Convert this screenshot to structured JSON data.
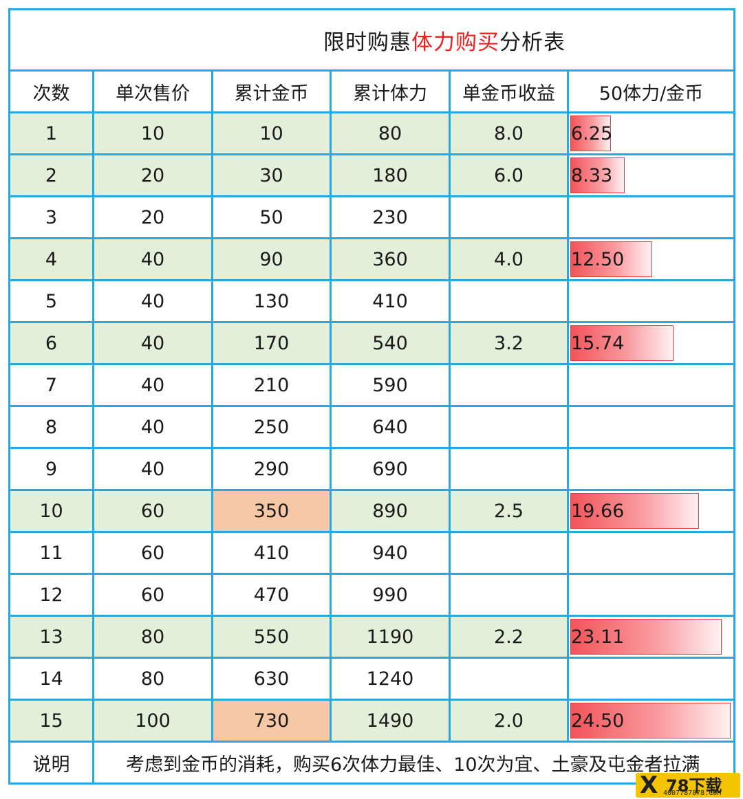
{
  "title": {
    "part1": "限时购惠",
    "part2": "体力购买",
    "part3": "分析表"
  },
  "headers": [
    "次数",
    "单次售价",
    "累计金币",
    "累计体力",
    "单金币收益",
    "50体力/金币"
  ],
  "rows": [
    {
      "n": "1",
      "price": "10",
      "coins": "10",
      "stamina": "80",
      "yield": "8.0",
      "ratio": "6.25",
      "ratio_value": 6.25,
      "hl": true,
      "peach": false
    },
    {
      "n": "2",
      "price": "20",
      "coins": "30",
      "stamina": "180",
      "yield": "6.0",
      "ratio": "8.33",
      "ratio_value": 8.33,
      "hl": true,
      "peach": false
    },
    {
      "n": "3",
      "price": "20",
      "coins": "50",
      "stamina": "230",
      "yield": "",
      "ratio": "",
      "ratio_value": 0,
      "hl": false,
      "peach": false
    },
    {
      "n": "4",
      "price": "40",
      "coins": "90",
      "stamina": "360",
      "yield": "4.0",
      "ratio": "12.50",
      "ratio_value": 12.5,
      "hl": true,
      "peach": false
    },
    {
      "n": "5",
      "price": "40",
      "coins": "130",
      "stamina": "410",
      "yield": "",
      "ratio": "",
      "ratio_value": 0,
      "hl": false,
      "peach": false
    },
    {
      "n": "6",
      "price": "40",
      "coins": "170",
      "stamina": "540",
      "yield": "3.2",
      "ratio": "15.74",
      "ratio_value": 15.74,
      "hl": true,
      "peach": false
    },
    {
      "n": "7",
      "price": "40",
      "coins": "210",
      "stamina": "590",
      "yield": "",
      "ratio": "",
      "ratio_value": 0,
      "hl": false,
      "peach": false
    },
    {
      "n": "8",
      "price": "40",
      "coins": "250",
      "stamina": "640",
      "yield": "",
      "ratio": "",
      "ratio_value": 0,
      "hl": false,
      "peach": false
    },
    {
      "n": "9",
      "price": "40",
      "coins": "290",
      "stamina": "690",
      "yield": "",
      "ratio": "",
      "ratio_value": 0,
      "hl": false,
      "peach": false
    },
    {
      "n": "10",
      "price": "60",
      "coins": "350",
      "stamina": "890",
      "yield": "2.5",
      "ratio": "19.66",
      "ratio_value": 19.66,
      "hl": true,
      "peach": true
    },
    {
      "n": "11",
      "price": "60",
      "coins": "410",
      "stamina": "940",
      "yield": "",
      "ratio": "",
      "ratio_value": 0,
      "hl": false,
      "peach": false
    },
    {
      "n": "12",
      "price": "60",
      "coins": "470",
      "stamina": "990",
      "yield": "",
      "ratio": "",
      "ratio_value": 0,
      "hl": false,
      "peach": false
    },
    {
      "n": "13",
      "price": "80",
      "coins": "550",
      "stamina": "1190",
      "yield": "2.2",
      "ratio": "23.11",
      "ratio_value": 23.11,
      "hl": true,
      "peach": false
    },
    {
      "n": "14",
      "price": "80",
      "coins": "630",
      "stamina": "1240",
      "yield": "",
      "ratio": "",
      "ratio_value": 0,
      "hl": false,
      "peach": false
    },
    {
      "n": "15",
      "price": "100",
      "coins": "730",
      "stamina": "1490",
      "yield": "2.0",
      "ratio": "24.50",
      "ratio_value": 24.5,
      "hl": true,
      "peach": true
    }
  ],
  "note": {
    "label": "说明",
    "text": "考虑到金币的消耗，购买6次体力最佳、10次为宜、土豪及屯金者拉满"
  },
  "watermark": {
    "mark": "X",
    "brand": "78下载",
    "site": "4007787878.COM"
  },
  "colors": {
    "border": "#29a8e0",
    "highlight": "#e3efd9",
    "peach": "#f6c8a5",
    "bar": "#f2545a",
    "title_red": "#e8201e"
  }
}
